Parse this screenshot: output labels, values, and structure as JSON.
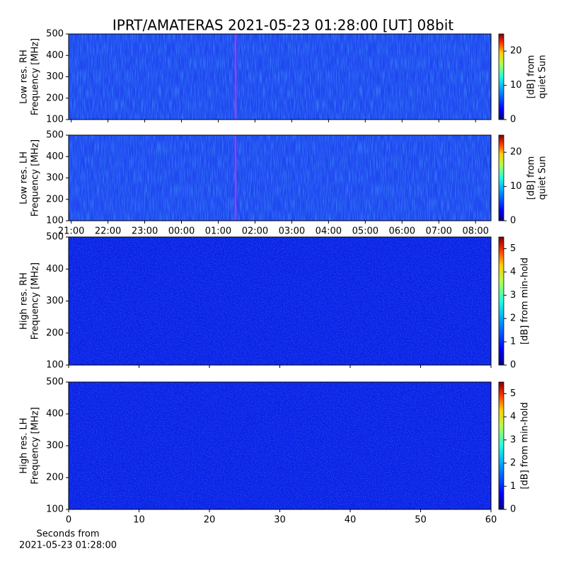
{
  "title": "IPRT/AMATERAS 2021-05-23 01:28:00 [UT]   08bit",
  "chart_data": [
    {
      "type": "heatmap",
      "ylabel": [
        "Low res. RH",
        "Frequency [MHz]"
      ],
      "ylim": [
        100,
        500
      ],
      "yticks": [
        100,
        200,
        300,
        400,
        500
      ],
      "xlim": [
        20.93,
        32.42
      ],
      "cursor_x": 25.47,
      "cursor_color": "#dd22dd",
      "colorbar": {
        "label": [
          "[dB] from",
          "quiet Sun"
        ],
        "lim": [
          0,
          25
        ],
        "ticks": [
          0,
          10,
          20
        ]
      }
    },
    {
      "type": "heatmap",
      "ylabel": [
        "Low res. LH",
        "Frequency [MHz]"
      ],
      "ylim": [
        100,
        500
      ],
      "yticks": [
        100,
        200,
        300,
        400,
        500
      ],
      "xlim": [
        20.93,
        32.42
      ],
      "cursor_x": 25.47,
      "cursor_color": "#dd22dd",
      "xticks": [
        {
          "value": 21,
          "label": "21:00"
        },
        {
          "value": 22,
          "label": "22:00"
        },
        {
          "value": 23,
          "label": "23:00"
        },
        {
          "value": 24,
          "label": "00:00"
        },
        {
          "value": 25,
          "label": "01:00"
        },
        {
          "value": 26,
          "label": "02:00"
        },
        {
          "value": 27,
          "label": "03:00"
        },
        {
          "value": 28,
          "label": "04:00"
        },
        {
          "value": 29,
          "label": "05:00"
        },
        {
          "value": 30,
          "label": "06:00"
        },
        {
          "value": 31,
          "label": "07:00"
        },
        {
          "value": 32,
          "label": "08:00"
        }
      ],
      "colorbar": {
        "label": [
          "[dB] from",
          "quiet Sun"
        ],
        "lim": [
          0,
          25
        ],
        "ticks": [
          0,
          10,
          20
        ]
      }
    },
    {
      "type": "heatmap",
      "ylabel": [
        "High res. RH",
        "Frequency [MHz]"
      ],
      "ylim": [
        100,
        500
      ],
      "yticks": [
        100,
        200,
        300,
        400,
        500
      ],
      "xlim": [
        0,
        60
      ],
      "colorbar": {
        "label": [
          "[dB] from min-hold"
        ],
        "lim": [
          0,
          5.5
        ],
        "ticks": [
          0,
          1,
          2,
          3,
          4,
          5
        ]
      }
    },
    {
      "type": "heatmap",
      "ylabel": [
        "High res. LH",
        "Frequency [MHz]"
      ],
      "ylim": [
        100,
        500
      ],
      "yticks": [
        100,
        200,
        300,
        400,
        500
      ],
      "xlim": [
        0,
        60
      ],
      "xticks": [
        0,
        10,
        20,
        30,
        40,
        50,
        60
      ],
      "xlabel": [
        "Seconds from",
        "2021-05-23 01:28:00"
      ],
      "colorbar": {
        "label": [
          "[dB] from min-hold"
        ],
        "lim": [
          0,
          5.5
        ],
        "ticks": [
          0,
          1,
          2,
          3,
          4,
          5
        ]
      }
    }
  ]
}
